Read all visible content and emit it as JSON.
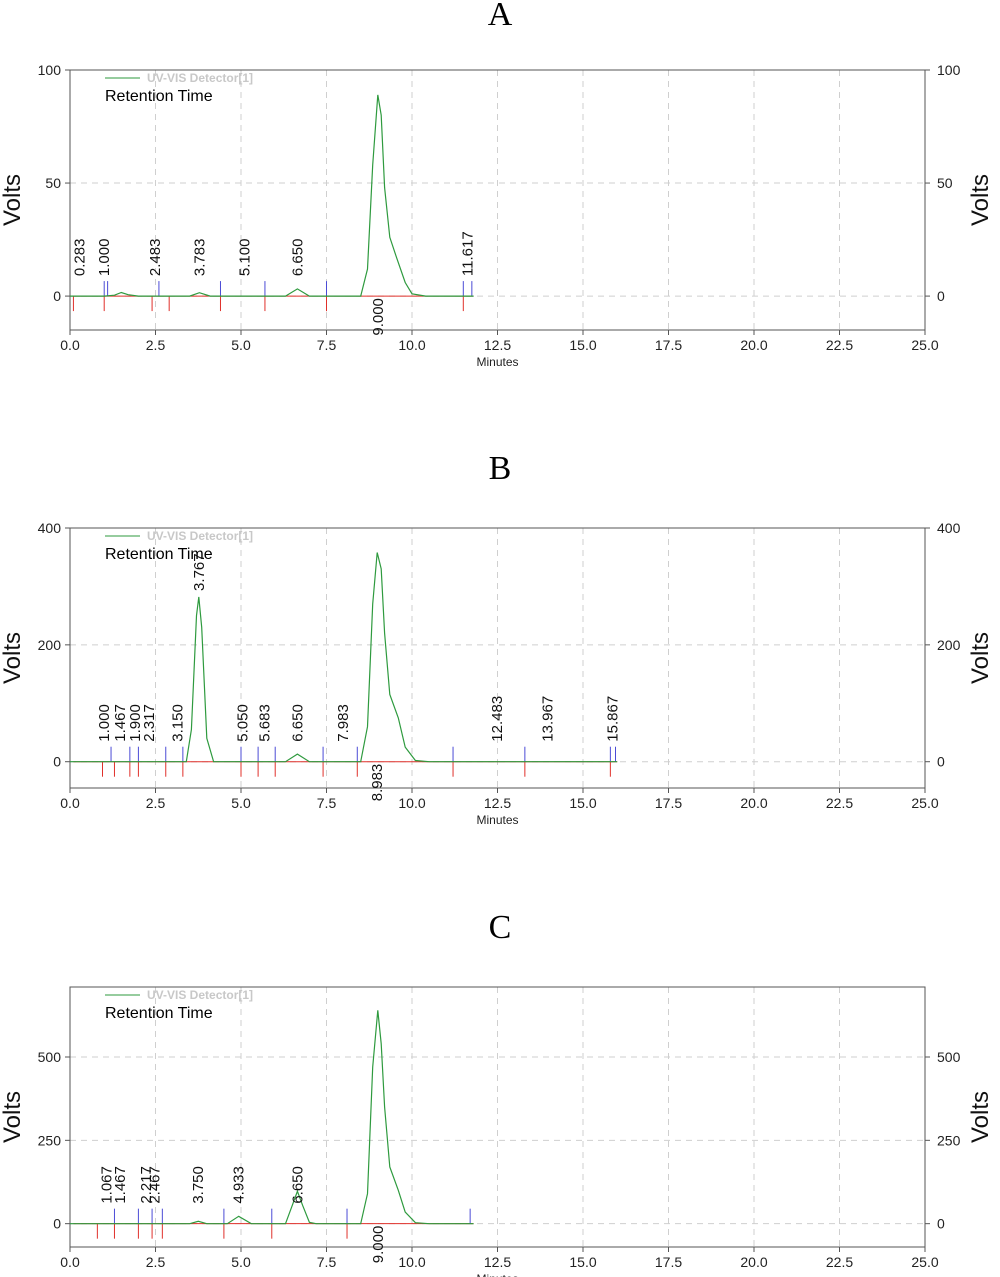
{
  "colors": {
    "trace": "#2e9a3e",
    "baseline": "#e0302a",
    "start_marker": "#e0302a",
    "end_marker": "#4b4bd6",
    "grid": "#cfcfcf",
    "frame": "#555555"
  },
  "chart_data": [
    {
      "panel": "A",
      "type": "line",
      "legend": "UV-VIS Detector[1]",
      "subtitle": "Retention Time",
      "xlabel": "Minutes",
      "ylabel": "Volts",
      "xlim": [
        0,
        25
      ],
      "ylim": [
        -15,
        100
      ],
      "xticks": [
        "0.0",
        "2.5",
        "5.0",
        "7.5",
        "10.0",
        "12.5",
        "15.0",
        "17.5",
        "20.0",
        "22.5",
        "25.0"
      ],
      "yticks": [
        0,
        50,
        100
      ],
      "grid": true,
      "series": [
        {
          "name": "UV-VIS Detector[1]",
          "points": [
            [
              0.0,
              0
            ],
            [
              1.0,
              0
            ],
            [
              1.3,
              0.4
            ],
            [
              1.5,
              1.6
            ],
            [
              1.7,
              0.6
            ],
            [
              2.0,
              0
            ],
            [
              3.5,
              0
            ],
            [
              3.783,
              1.5
            ],
            [
              4.1,
              0
            ],
            [
              6.3,
              0
            ],
            [
              6.65,
              3.2
            ],
            [
              7.0,
              0
            ],
            [
              8.5,
              0
            ],
            [
              8.7,
              12
            ],
            [
              8.85,
              58
            ],
            [
              9.0,
              89
            ],
            [
              9.1,
              80
            ],
            [
              9.2,
              48
            ],
            [
              9.35,
              26
            ],
            [
              9.55,
              17
            ],
            [
              9.8,
              6
            ],
            [
              10.0,
              1
            ],
            [
              10.4,
              0
            ],
            [
              11.8,
              0
            ]
          ]
        }
      ],
      "peaks": [
        {
          "rt": "0.283",
          "x": 0.283,
          "pos": "above"
        },
        {
          "rt": "1.000",
          "x": 1.0,
          "pos": "above"
        },
        {
          "rt": "2.483",
          "x": 2.483,
          "pos": "above"
        },
        {
          "rt": "3.783",
          "x": 3.783,
          "pos": "above"
        },
        {
          "rt": "5.100",
          "x": 5.1,
          "pos": "above"
        },
        {
          "rt": "6.650",
          "x": 6.65,
          "pos": "above"
        },
        {
          "rt": "9.000",
          "x": 9.0,
          "pos": "below"
        },
        {
          "rt": "11.617",
          "x": 11.617,
          "pos": "above"
        }
      ],
      "start_markers": [
        0.1,
        1.0,
        2.4,
        2.9,
        4.4,
        5.7,
        7.5,
        11.5
      ],
      "end_markers": [
        1.0,
        1.1,
        2.6,
        4.4,
        5.7,
        7.5,
        11.5,
        11.75
      ]
    },
    {
      "panel": "B",
      "type": "line",
      "legend": "UV-VIS Detector[1]",
      "subtitle": "Retention Time",
      "xlabel": "Minutes",
      "ylabel": "Volts",
      "xlim": [
        0,
        25
      ],
      "ylim": [
        -45,
        400
      ],
      "xticks": [
        "0.0",
        "2.5",
        "5.0",
        "7.5",
        "10.0",
        "12.5",
        "15.0",
        "17.5",
        "20.0",
        "22.5",
        "25.0"
      ],
      "yticks": [
        0,
        200,
        400
      ],
      "grid": true,
      "series": [
        {
          "name": "UV-VIS Detector[1]",
          "points": [
            [
              0.0,
              0
            ],
            [
              3.4,
              0
            ],
            [
              3.55,
              55
            ],
            [
              3.7,
              250
            ],
            [
              3.767,
              282
            ],
            [
              3.85,
              230
            ],
            [
              4.0,
              40
            ],
            [
              4.2,
              0
            ],
            [
              6.3,
              0
            ],
            [
              6.65,
              13
            ],
            [
              7.0,
              0
            ],
            [
              8.5,
              0
            ],
            [
              8.7,
              60
            ],
            [
              8.85,
              270
            ],
            [
              8.983,
              358
            ],
            [
              9.1,
              330
            ],
            [
              9.2,
              220
            ],
            [
              9.35,
              115
            ],
            [
              9.6,
              75
            ],
            [
              9.8,
              25
            ],
            [
              10.1,
              2
            ],
            [
              10.5,
              0
            ],
            [
              16.0,
              0
            ]
          ]
        }
      ],
      "peaks": [
        {
          "rt": "1.000",
          "x": 1.0,
          "pos": "above"
        },
        {
          "rt": "1.467",
          "x": 1.467,
          "pos": "above"
        },
        {
          "rt": "1.900",
          "x": 1.9,
          "pos": "above"
        },
        {
          "rt": "2.317",
          "x": 2.317,
          "pos": "above"
        },
        {
          "rt": "3.150",
          "x": 3.15,
          "pos": "above"
        },
        {
          "rt": "3.767",
          "x": 3.767,
          "pos": "apex"
        },
        {
          "rt": "5.050",
          "x": 5.05,
          "pos": "above"
        },
        {
          "rt": "5.683",
          "x": 5.683,
          "pos": "above"
        },
        {
          "rt": "6.650",
          "x": 6.65,
          "pos": "above"
        },
        {
          "rt": "7.983",
          "x": 7.983,
          "pos": "above"
        },
        {
          "rt": "8.983",
          "x": 8.983,
          "pos": "below"
        },
        {
          "rt": "12.483",
          "x": 12.483,
          "pos": "above"
        },
        {
          "rt": "13.967",
          "x": 13.967,
          "pos": "above"
        },
        {
          "rt": "15.867",
          "x": 15.867,
          "pos": "above"
        }
      ],
      "start_markers": [
        0.95,
        1.3,
        1.75,
        2.0,
        2.8,
        3.3,
        5.0,
        5.5,
        6.0,
        7.4,
        8.4,
        11.2,
        13.3,
        15.8
      ],
      "end_markers": [
        1.2,
        1.75,
        2.0,
        2.8,
        3.3,
        5.0,
        5.5,
        6.0,
        7.4,
        8.4,
        11.2,
        13.3,
        15.8,
        15.95
      ]
    },
    {
      "panel": "C",
      "type": "line",
      "legend": "UV-VIS Detector[1]",
      "subtitle": "Retention Time",
      "xlabel": "Minutes",
      "ylabel": "Volts",
      "xlim": [
        0,
        25
      ],
      "ylim": [
        -70,
        710
      ],
      "xticks": [
        "0.0",
        "2.5",
        "5.0",
        "7.5",
        "10.0",
        "12.5",
        "15.0",
        "17.5",
        "20.0",
        "22.5",
        "25.0"
      ],
      "yticks": [
        0,
        250,
        500
      ],
      "grid": true,
      "series": [
        {
          "name": "UV-VIS Detector[1]",
          "points": [
            [
              0.0,
              0
            ],
            [
              3.5,
              0
            ],
            [
              3.75,
              7
            ],
            [
              4.0,
              0
            ],
            [
              4.6,
              0
            ],
            [
              4.933,
              22
            ],
            [
              5.3,
              0
            ],
            [
              6.3,
              0
            ],
            [
              6.5,
              55
            ],
            [
              6.65,
              97
            ],
            [
              6.8,
              55
            ],
            [
              7.0,
              4
            ],
            [
              7.2,
              0
            ],
            [
              8.5,
              0
            ],
            [
              8.7,
              90
            ],
            [
              8.85,
              470
            ],
            [
              9.0,
              640
            ],
            [
              9.1,
              540
            ],
            [
              9.2,
              350
            ],
            [
              9.35,
              170
            ],
            [
              9.6,
              100
            ],
            [
              9.8,
              35
            ],
            [
              10.1,
              3
            ],
            [
              10.5,
              0
            ],
            [
              11.8,
              0
            ]
          ]
        }
      ],
      "peaks": [
        {
          "rt": "1.067",
          "x": 1.067,
          "pos": "above"
        },
        {
          "rt": "1.467",
          "x": 1.467,
          "pos": "above"
        },
        {
          "rt": "2.217",
          "x": 2.217,
          "pos": "above"
        },
        {
          "rt": "2.467",
          "x": 2.467,
          "pos": "above"
        },
        {
          "rt": "3.750",
          "x": 3.75,
          "pos": "above"
        },
        {
          "rt": "4.933",
          "x": 4.933,
          "pos": "above"
        },
        {
          "rt": "6.650",
          "x": 6.65,
          "pos": "above"
        },
        {
          "rt": "9.000",
          "x": 9.0,
          "pos": "below"
        }
      ],
      "start_markers": [
        0.8,
        1.3,
        2.0,
        2.4,
        2.7,
        4.5,
        5.9,
        8.1
      ],
      "end_markers": [
        1.3,
        2.0,
        2.4,
        2.7,
        4.5,
        5.9,
        8.1,
        11.7
      ]
    }
  ]
}
